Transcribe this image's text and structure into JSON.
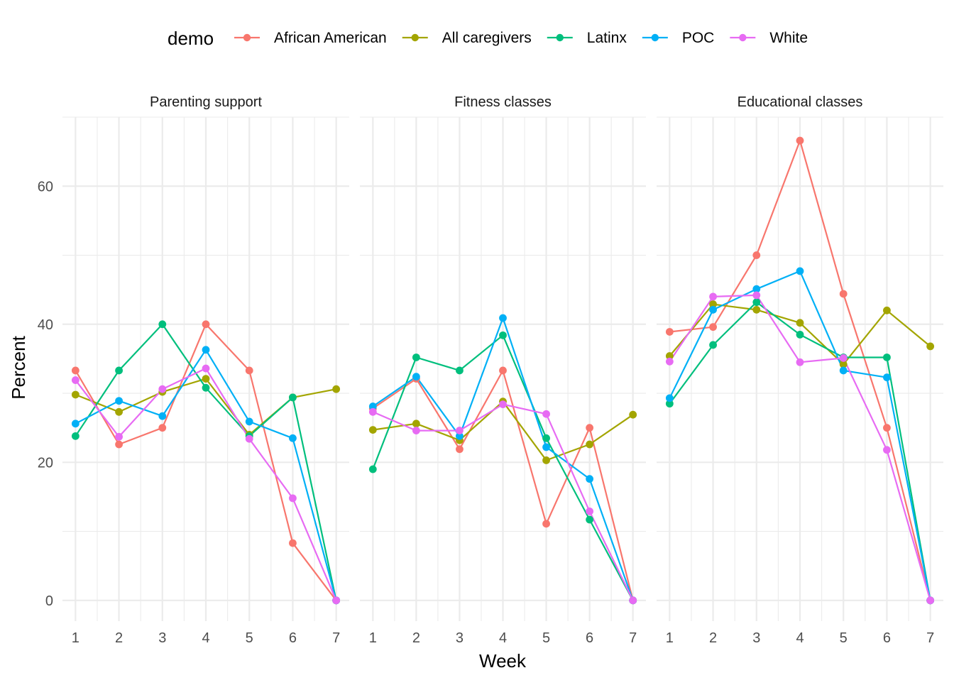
{
  "chart_data": {
    "type": "line",
    "xlabel": "Week",
    "ylabel": "Percent",
    "ylim": [
      -3,
      70
    ],
    "y_ticks": [
      0,
      20,
      40,
      60
    ],
    "y_tick_labels": [
      "0",
      "20",
      "40",
      "60"
    ],
    "x_ticks": [
      1,
      2,
      3,
      4,
      5,
      6,
      7
    ],
    "x_tick_labels": [
      "1",
      "2",
      "3",
      "4",
      "5",
      "6",
      "7"
    ],
    "grid": true,
    "legend": {
      "title": "demo",
      "position": "top",
      "entries": [
        "African American",
        "All caregivers",
        "Latinx",
        "POC",
        "White"
      ]
    },
    "colors": {
      "African American": "#F8766D",
      "All caregivers": "#A3A500",
      "Latinx": "#00BF7D",
      "POC": "#00B0F6",
      "White": "#E76BF3"
    },
    "panels": [
      {
        "title": "Parenting support",
        "series": [
          {
            "name": "African American",
            "x": [
              1,
              2,
              3,
              4,
              5,
              6,
              7
            ],
            "values": [
              33.3,
              22.6,
              25.0,
              40.0,
              33.3,
              8.3,
              0
            ]
          },
          {
            "name": "All caregivers",
            "x": [
              1,
              2,
              3,
              4,
              5,
              6,
              7
            ],
            "values": [
              29.8,
              27.3,
              30.2,
              32.1,
              24.0,
              29.4,
              30.6
            ]
          },
          {
            "name": "Latinx",
            "x": [
              1,
              2,
              3,
              4,
              5,
              6,
              7
            ],
            "values": [
              23.8,
              33.3,
              40.0,
              30.8,
              23.8,
              29.4,
              0
            ]
          },
          {
            "name": "POC",
            "x": [
              1,
              2,
              3,
              4,
              5,
              6,
              7
            ],
            "values": [
              25.6,
              28.9,
              26.7,
              36.3,
              25.9,
              23.5,
              0
            ]
          },
          {
            "name": "White",
            "x": [
              1,
              2,
              3,
              4,
              5,
              6,
              7
            ],
            "values": [
              31.9,
              23.7,
              30.6,
              33.6,
              23.4,
              14.8,
              0
            ]
          }
        ]
      },
      {
        "title": "Fitness classes",
        "series": [
          {
            "name": "African American",
            "x": [
              1,
              2,
              3,
              4,
              5,
              6,
              7
            ],
            "values": [
              27.8,
              32.1,
              21.9,
              33.3,
              11.1,
              25.0,
              0
            ]
          },
          {
            "name": "All caregivers",
            "x": [
              1,
              2,
              3,
              4,
              5,
              6,
              7
            ],
            "values": [
              24.7,
              25.6,
              23.2,
              28.8,
              20.3,
              22.6,
              26.9
            ]
          },
          {
            "name": "Latinx",
            "x": [
              1,
              2,
              3,
              4,
              5,
              6,
              7
            ],
            "values": [
              19.0,
              35.2,
              33.3,
              38.4,
              23.5,
              11.7,
              0
            ]
          },
          {
            "name": "POC",
            "x": [
              1,
              2,
              3,
              4,
              5,
              6,
              7
            ],
            "values": [
              28.1,
              32.4,
              23.8,
              40.9,
              22.2,
              17.6,
              0
            ]
          },
          {
            "name": "White",
            "x": [
              1,
              2,
              3,
              4,
              5,
              6,
              7
            ],
            "values": [
              27.3,
              24.6,
              24.6,
              28.4,
              27.0,
              12.9,
              0
            ]
          }
        ]
      },
      {
        "title": "Educational classes",
        "series": [
          {
            "name": "African American",
            "x": [
              1,
              2,
              3,
              4,
              5,
              6,
              7
            ],
            "values": [
              38.9,
              39.6,
              50.0,
              66.6,
              44.4,
              25.0,
              0
            ]
          },
          {
            "name": "All caregivers",
            "x": [
              1,
              2,
              3,
              4,
              5,
              6,
              7
            ],
            "values": [
              35.4,
              42.9,
              42.1,
              40.2,
              34.2,
              42.0,
              36.8
            ]
          },
          {
            "name": "Latinx",
            "x": [
              1,
              2,
              3,
              4,
              5,
              6,
              7
            ],
            "values": [
              28.5,
              37.0,
              43.2,
              38.5,
              35.2,
              35.2,
              0
            ]
          },
          {
            "name": "POC",
            "x": [
              1,
              2,
              3,
              4,
              5,
              6,
              7
            ],
            "values": [
              29.3,
              42.1,
              45.1,
              47.7,
              33.3,
              32.3,
              0
            ]
          },
          {
            "name": "White",
            "x": [
              1,
              2,
              3,
              4,
              5,
              6,
              7
            ],
            "values": [
              34.6,
              44.0,
              44.2,
              34.5,
              35.1,
              21.8,
              0
            ]
          }
        ]
      }
    ]
  }
}
